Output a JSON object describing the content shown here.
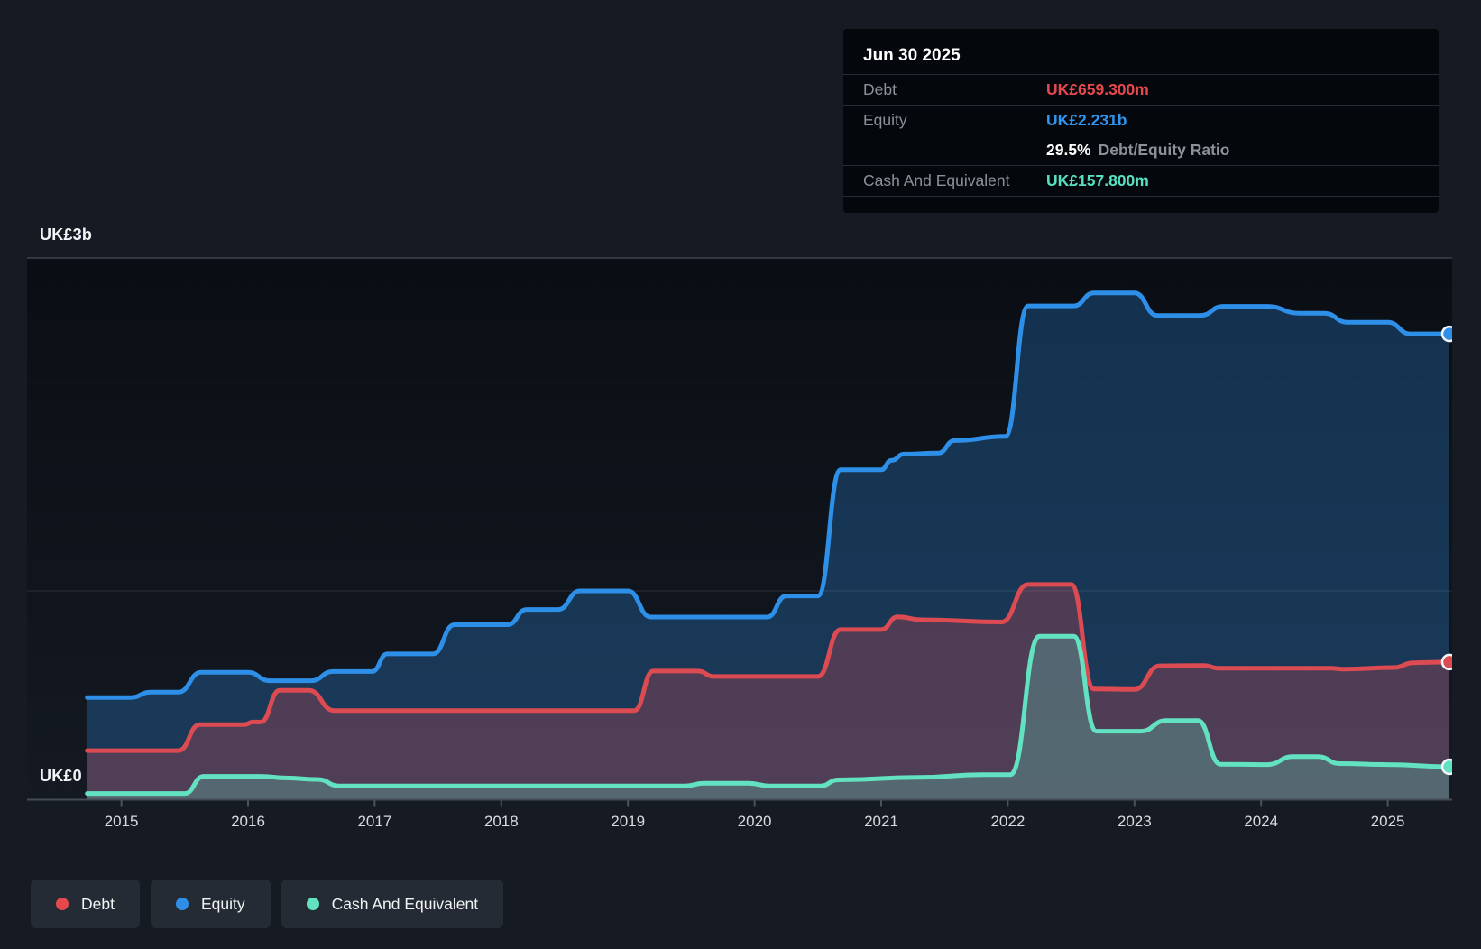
{
  "page": {
    "background": "#161b23",
    "accent_blue": "#2e8fe8",
    "accent_red": "#e5484d",
    "accent_teal": "#63e2c2"
  },
  "tooltip": {
    "date": "Jun 30 2025",
    "debt_label": "Debt",
    "debt_value": "UK£659.300m",
    "equity_label": "Equity",
    "equity_value": "UK£2.231b",
    "ratio_value": "29.5%",
    "ratio_label": "Debt/Equity Ratio",
    "cash_label": "Cash And Equivalent",
    "cash_value": "UK£157.800m"
  },
  "axes": {
    "y_top": "UK£3b",
    "y_zero": "UK£0",
    "years": [
      "2015",
      "2016",
      "2017",
      "2018",
      "2019",
      "2020",
      "2021",
      "2022",
      "2023",
      "2024",
      "2025"
    ]
  },
  "legend": [
    {
      "id": "debt",
      "label": "Debt",
      "color": "#e5484d"
    },
    {
      "id": "equity",
      "label": "Equity",
      "color": "#2e8fe8"
    },
    {
      "id": "cash",
      "label": "Cash And Equivalent",
      "color": "#63e2c2"
    }
  ],
  "chart_data": {
    "type": "area",
    "title": "Debt to Equity History",
    "x_unit": "year",
    "y_unit": "UK£ millions",
    "x_range": [
      2014.73,
      2025.48
    ],
    "ylim": [
      0,
      2594
    ],
    "y_gridline_values_m": [
      1000,
      2000
    ],
    "legend_position": "bottom-left",
    "series": [
      {
        "name": "Equity",
        "color": "#2e8fe8",
        "fill": "rgba(46,143,232,0.28)",
        "points": [
          [
            2014.73,
            489
          ],
          [
            2015.07,
            489
          ],
          [
            2015.23,
            515
          ],
          [
            2015.45,
            515
          ],
          [
            2015.63,
            610
          ],
          [
            2016.0,
            610
          ],
          [
            2016.17,
            570
          ],
          [
            2016.5,
            570
          ],
          [
            2016.67,
            614
          ],
          [
            2016.98,
            614
          ],
          [
            2017.1,
            698
          ],
          [
            2017.46,
            698
          ],
          [
            2017.63,
            838
          ],
          [
            2018.05,
            838
          ],
          [
            2018.2,
            911
          ],
          [
            2018.45,
            911
          ],
          [
            2018.62,
            1000
          ],
          [
            2019.0,
            1000
          ],
          [
            2019.18,
            875
          ],
          [
            2020.1,
            875
          ],
          [
            2020.25,
            976
          ],
          [
            2020.5,
            976
          ],
          [
            2020.68,
            1580
          ],
          [
            2021.0,
            1580
          ],
          [
            2021.08,
            1625
          ],
          [
            2021.18,
            1655
          ],
          [
            2021.45,
            1660
          ],
          [
            2021.58,
            1720
          ],
          [
            2021.98,
            1740
          ],
          [
            2022.16,
            2365
          ],
          [
            2022.52,
            2365
          ],
          [
            2022.68,
            2427
          ],
          [
            2023.0,
            2427
          ],
          [
            2023.18,
            2319
          ],
          [
            2023.52,
            2319
          ],
          [
            2023.7,
            2363
          ],
          [
            2024.05,
            2363
          ],
          [
            2024.3,
            2330
          ],
          [
            2024.5,
            2330
          ],
          [
            2024.68,
            2287
          ],
          [
            2025.0,
            2287
          ],
          [
            2025.18,
            2231
          ],
          [
            2025.48,
            2231
          ]
        ]
      },
      {
        "name": "Debt",
        "color": "#dc4b52",
        "fill": "rgba(220,75,82,0.28)",
        "points": [
          [
            2014.73,
            235
          ],
          [
            2015.45,
            235
          ],
          [
            2015.62,
            360
          ],
          [
            2015.97,
            360
          ],
          [
            2016.04,
            372
          ],
          [
            2016.1,
            372
          ],
          [
            2016.25,
            524
          ],
          [
            2016.48,
            524
          ],
          [
            2016.68,
            427
          ],
          [
            2019.05,
            427
          ],
          [
            2019.2,
            616
          ],
          [
            2019.55,
            616
          ],
          [
            2019.68,
            590
          ],
          [
            2020.5,
            590
          ],
          [
            2020.68,
            815
          ],
          [
            2021.0,
            815
          ],
          [
            2021.13,
            876
          ],
          [
            2021.32,
            862
          ],
          [
            2021.95,
            851
          ],
          [
            2022.16,
            1031
          ],
          [
            2022.5,
            1031
          ],
          [
            2022.68,
            530
          ],
          [
            2023.0,
            528
          ],
          [
            2023.2,
            641
          ],
          [
            2023.55,
            643
          ],
          [
            2023.66,
            630
          ],
          [
            2024.55,
            630
          ],
          [
            2024.65,
            625
          ],
          [
            2025.05,
            633
          ],
          [
            2025.2,
            656
          ],
          [
            2025.48,
            659.3
          ]
        ]
      },
      {
        "name": "Cash And Equivalent",
        "color": "#63e2c2",
        "fill": "rgba(99,226,194,0.26)",
        "points": [
          [
            2014.73,
            30
          ],
          [
            2015.5,
            30
          ],
          [
            2015.65,
            112
          ],
          [
            2016.1,
            112
          ],
          [
            2016.3,
            104
          ],
          [
            2016.55,
            97
          ],
          [
            2016.72,
            66
          ],
          [
            2019.45,
            66
          ],
          [
            2019.6,
            79
          ],
          [
            2019.95,
            79
          ],
          [
            2020.12,
            66
          ],
          [
            2020.52,
            66
          ],
          [
            2020.66,
            95
          ],
          [
            2021.3,
            107
          ],
          [
            2021.8,
            120
          ],
          [
            2022.02,
            120
          ],
          [
            2022.25,
            783
          ],
          [
            2022.52,
            783
          ],
          [
            2022.7,
            328
          ],
          [
            2023.05,
            328
          ],
          [
            2023.25,
            379
          ],
          [
            2023.5,
            379
          ],
          [
            2023.68,
            170
          ],
          [
            2024.05,
            168
          ],
          [
            2024.25,
            206
          ],
          [
            2024.45,
            206
          ],
          [
            2024.62,
            173
          ],
          [
            2025.0,
            168
          ],
          [
            2025.48,
            157.8
          ]
        ]
      }
    ]
  }
}
